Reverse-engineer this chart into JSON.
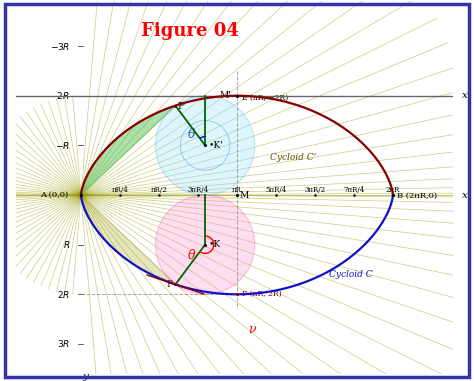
{
  "R": 1,
  "title": "Figure 04",
  "title_color": "#FF0000",
  "bg_color": "#FFFFFF",
  "border_color": "#3333AA",
  "xlim_data": [
    -1.3,
    7.5
  ],
  "ylim_data": [
    -3.9,
    3.6
  ],
  "axis_color": "#666666",
  "cycloid_color": "#1111CC",
  "cycloid_prime_color": "#880000",
  "circle_lower_fill": "#FF88CC",
  "circle_lower_alpha": 0.28,
  "circle_lower_edge": "#EE44AA",
  "circle_upper_fill": "#88DDFF",
  "circle_upper_alpha": 0.28,
  "circle_upper_edge": "#44AAEE",
  "fan_color": "#999900",
  "fan_alpha": 0.5,
  "green_fill_color": "#44BB44",
  "green_fill_alpha": 0.45,
  "theta_lower": 2.5,
  "theta_upper": 2.5,
  "tick_xs": [
    0.7854,
    1.5708,
    2.3562,
    3.1416,
    3.927,
    4.7124,
    5.4978,
    6.2832
  ],
  "tick_texts": [
    "πR/4",
    "πR/2",
    "3πR/4",
    "πR",
    "5πR/4",
    "3πR/2",
    "7πR/4",
    "2πR"
  ]
}
